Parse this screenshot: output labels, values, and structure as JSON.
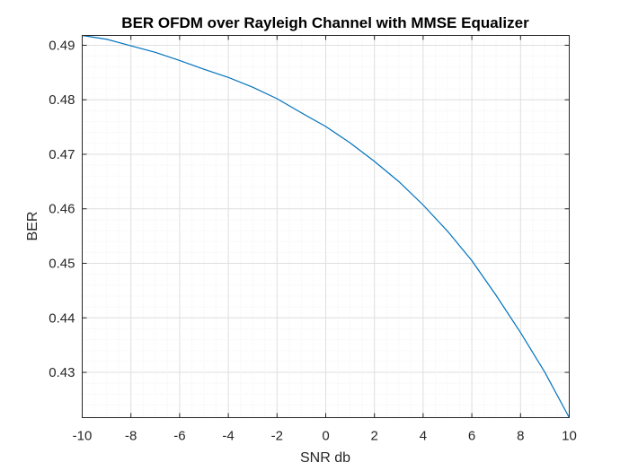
{
  "chart_data": {
    "type": "line",
    "title": "BER OFDM over Rayleigh Channel with MMSE Equalizer",
    "xlabel": "SNR db",
    "ylabel": "BER",
    "xlim": [
      -10,
      10
    ],
    "ylim": [
      0.4217,
      0.4918
    ],
    "xticks": [
      "-10",
      "-8",
      "-6",
      "-4",
      "-2",
      "0",
      "2",
      "4",
      "6",
      "8",
      "10"
    ],
    "yticks": [
      "0.43",
      "0.44",
      "0.45",
      "0.46",
      "0.47",
      "0.48",
      "0.49"
    ],
    "grid": true,
    "minor_grid": true,
    "series": [
      {
        "color": "#0072bd",
        "x": [
          -10,
          -9,
          -8,
          -7,
          -6,
          -5,
          -4,
          -3,
          -2,
          -1,
          0,
          1,
          2,
          3,
          4,
          5,
          6,
          7,
          8,
          9,
          10
        ],
        "y": [
          0.4918,
          0.4911,
          0.4899,
          0.4887,
          0.4872,
          0.4856,
          0.4841,
          0.4823,
          0.4802,
          0.4776,
          0.4751,
          0.4721,
          0.4687,
          0.465,
          0.4607,
          0.4559,
          0.4505,
          0.4441,
          0.4373,
          0.43,
          0.4217
        ]
      }
    ]
  },
  "colors": {
    "axis": "#262626",
    "major_grid": "#dfdfdf",
    "minor_grid": "#efefef",
    "line": "#0072bd"
  }
}
